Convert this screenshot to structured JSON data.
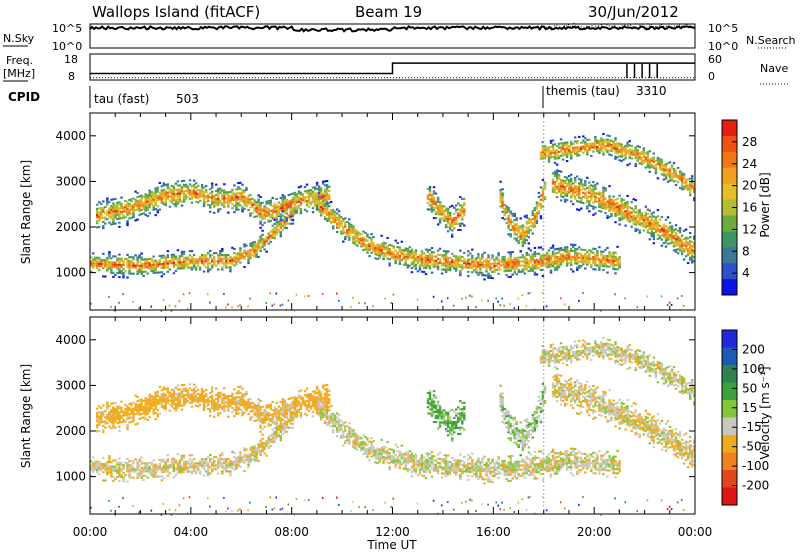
{
  "header": {
    "site": "Wallops Island (fitACF)",
    "beam": "Beam 19",
    "date": "30/Jun/2012"
  },
  "panels": {
    "nsky_label": "N.Sky",
    "nsearch_label": "N.Search",
    "freq_label_1": "Freq.",
    "freq_label_2": "[MHz]",
    "nave_label": "Nave",
    "cpid_label": "CPID",
    "nsky_ticks": [
      "10^5",
      "10^0"
    ],
    "nsearch_ticks": [
      "10^5",
      "10^0"
    ],
    "freq_ticks": [
      "18",
      "8"
    ],
    "nave_ticks": [
      "60",
      "0"
    ]
  },
  "cpid": {
    "modes": [
      {
        "name": "tau (fast)",
        "id": "503",
        "start_hour": 0
      },
      {
        "name": "themis (tau)",
        "id": "3310",
        "start_hour": 18
      }
    ]
  },
  "power_panel": {
    "ylabel": "Slant Range [km]",
    "yticks": [
      "1000",
      "2000",
      "3000",
      "4000"
    ],
    "colorbar_label": "Power [dB]",
    "colorbar_ticks": [
      "4",
      "8",
      "12",
      "16",
      "20",
      "24",
      "28"
    ],
    "colors": [
      "#0a14e6",
      "#2e50c8",
      "#3c7896",
      "#3c9664",
      "#6eaa3c",
      "#b4be32",
      "#e6be28",
      "#f0a01e",
      "#f07814",
      "#f05014",
      "#e61e0f"
    ]
  },
  "velocity_panel": {
    "ylabel": "Slant Range [km]",
    "yticks": [
      "1000",
      "2000",
      "3000",
      "4000"
    ],
    "colorbar_label": "Velocity [m s⁻¹]",
    "colorbar_ticks": [
      "200",
      "100",
      "50",
      "15",
      "-15",
      "-50",
      "-100",
      "-200"
    ],
    "colors": [
      "#1e28dc",
      "#1e5ab4",
      "#2d8250",
      "#3ca03c",
      "#82c83c",
      "#c8c8c0",
      "#f0aa1e",
      "#f0821e",
      "#e6461e",
      "#dc1414"
    ]
  },
  "xaxis": {
    "label": "Time UT",
    "ticks": [
      "00:00",
      "04:00",
      "08:00",
      "12:00",
      "16:00",
      "20:00",
      "00:00"
    ]
  },
  "chart_data": {
    "type": "heatmap",
    "title": "Wallops Island (fitACF)  Beam 19  30/Jun/2012",
    "xlabel": "Time UT",
    "ylabel": "Slant Range [km]",
    "xlim_hours": [
      0,
      24
    ],
    "ylim_km": [
      180,
      4500
    ],
    "features": [
      {
        "name": "band_low",
        "pts": [
          [
            0.0,
            1200
          ],
          [
            2.0,
            1150
          ],
          [
            4.0,
            1250
          ],
          [
            5.5,
            1250
          ],
          [
            6.5,
            1500
          ],
          [
            7.3,
            1900
          ],
          [
            8.0,
            2300
          ]
        ],
        "width": 170,
        "vel": -10
      },
      {
        "name": "band_upper_early",
        "pts": [
          [
            0.2,
            2250
          ],
          [
            1.5,
            2400
          ],
          [
            3.0,
            2700
          ],
          [
            4.0,
            2750
          ],
          [
            5.0,
            2600
          ],
          [
            6.0,
            2650
          ],
          [
            6.8,
            2300
          ],
          [
            7.5,
            2400
          ],
          [
            8.5,
            2600
          ],
          [
            9.5,
            2700
          ]
        ],
        "width": 220,
        "vel": -30
      },
      {
        "name": "band_mid",
        "pts": [
          [
            9.0,
            2500
          ],
          [
            10.0,
            2000
          ],
          [
            11.0,
            1600
          ],
          [
            12.0,
            1400
          ],
          [
            13.0,
            1300
          ],
          [
            14.0,
            1250
          ],
          [
            15.0,
            1200
          ],
          [
            16.0,
            1150
          ],
          [
            17.0,
            1200
          ],
          [
            18.0,
            1250
          ],
          [
            19.0,
            1350
          ],
          [
            20.0,
            1300
          ],
          [
            21.0,
            1250
          ]
        ],
        "width": 200,
        "vel": -5
      },
      {
        "name": "band_arc_14",
        "pts": [
          [
            13.3,
            2700
          ],
          [
            13.8,
            2400
          ],
          [
            14.3,
            2100
          ],
          [
            14.8,
            2400
          ]
        ],
        "width": 230,
        "vel": 20
      },
      {
        "name": "band_arc_16",
        "pts": [
          [
            16.2,
            2700
          ],
          [
            16.6,
            2100
          ],
          [
            17.1,
            1800
          ],
          [
            17.6,
            2200
          ],
          [
            18.0,
            2800
          ]
        ],
        "width": 230,
        "vel": 5
      },
      {
        "name": "band_high_late",
        "pts": [
          [
            18.3,
            2950
          ],
          [
            19.5,
            2750
          ],
          [
            20.5,
            2550
          ],
          [
            21.5,
            2250
          ],
          [
            22.5,
            2000
          ],
          [
            23.5,
            1600
          ],
          [
            24.0,
            1500
          ]
        ],
        "width": 250,
        "vel": -10
      },
      {
        "name": "band_top_late",
        "pts": [
          [
            17.8,
            3600
          ],
          [
            19.0,
            3700
          ],
          [
            20.5,
            3800
          ],
          [
            22.0,
            3500
          ],
          [
            23.0,
            3200
          ],
          [
            24.0,
            2800
          ]
        ],
        "width": 180,
        "vel": -5
      }
    ],
    "nsky_level_log10": 4.2,
    "freq_MHz_segments": [
      {
        "start_hour": 0,
        "end_hour": 12,
        "value": 10.5
      },
      {
        "start_hour": 12,
        "end_hour": 24,
        "value": 14.5
      }
    ],
    "nave_level": 5
  }
}
